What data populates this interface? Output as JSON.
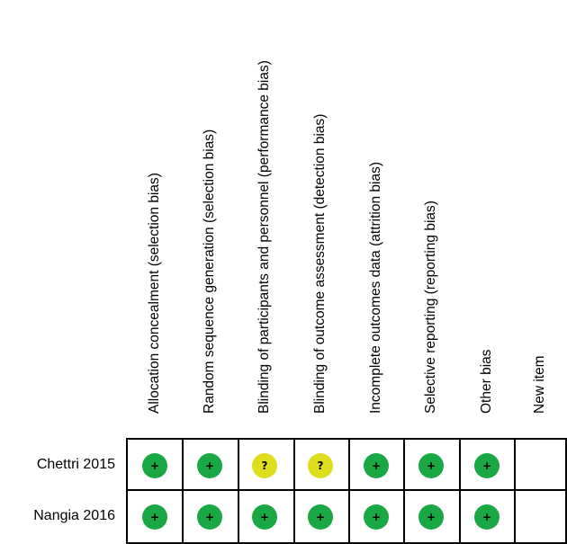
{
  "columns": [
    "Allocation concealment (selection bias)",
    "Random sequence generation (selection bias)",
    "Blinding of participants and personnel (performance bias)",
    "Blinding of outcome assessment (detection bias)",
    "Incomplete outcomes data (attrition bias)",
    "Selective reporting (reporting bias)",
    "Other bias",
    "New item"
  ],
  "rows": [
    {
      "study": "Chettri 2015",
      "judgements": [
        "low",
        "low",
        "unclear",
        "unclear",
        "low",
        "low",
        "low",
        ""
      ]
    },
    {
      "study": "Nangia 2016",
      "judgements": [
        "low",
        "low",
        "low",
        "low",
        "low",
        "low",
        "low",
        ""
      ]
    }
  ],
  "symbols": {
    "low": "+",
    "unclear": "?"
  },
  "colors": {
    "low": "#1aa845",
    "unclear": "#dede1e",
    "low_text": "#000000",
    "unclear_text": "#000000"
  }
}
